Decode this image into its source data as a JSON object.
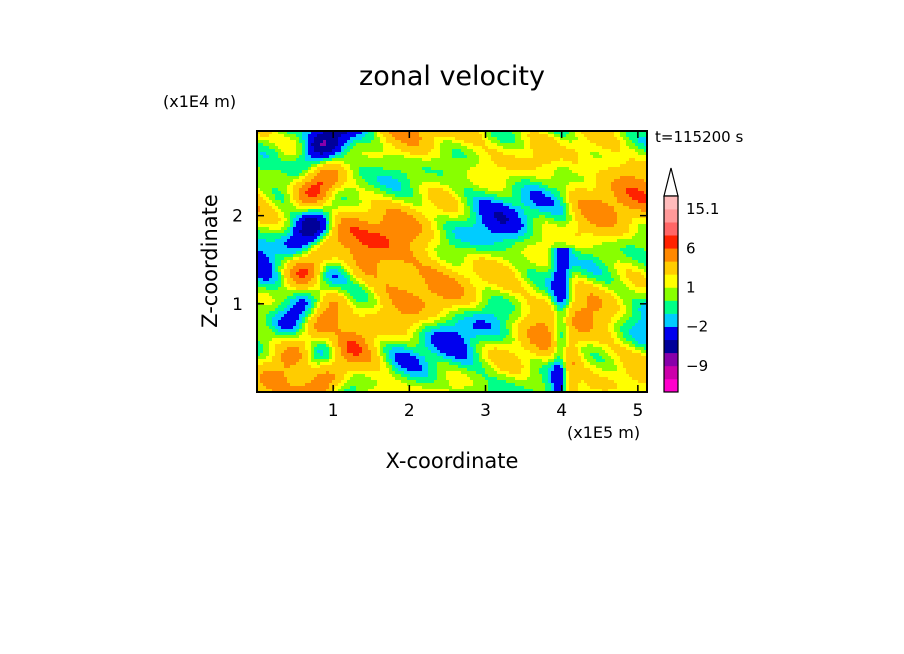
{
  "chart_data": {
    "type": "heatmap",
    "title": "zonal velocity",
    "xlabel": "X-coordinate",
    "ylabel": "Z-coordinate",
    "x_unit": "(x1E5 m)",
    "y_unit": "(x1E4 m)",
    "time_label": "t=115200 s",
    "xlim": [
      0,
      5.12
    ],
    "ylim": [
      0,
      2.96
    ],
    "x_ticks": [
      1,
      2,
      3,
      4,
      5
    ],
    "y_ticks": [
      1,
      2
    ],
    "colorbar": {
      "tick_labels": [
        "15.1",
        "6",
        "1",
        "−2",
        "−9"
      ],
      "tick_values": [
        15.1,
        6,
        1,
        -2,
        -9
      ],
      "levels": [
        -16,
        -12,
        -9,
        -6,
        -4,
        -2,
        -1,
        0,
        1,
        2,
        4,
        6,
        9,
        12,
        15.1
      ],
      "colors": [
        "#ff00cc",
        "#cc00aa",
        "#8800aa",
        "#000099",
        "#0000ee",
        "#00ccff",
        "#00ff88",
        "#88ff00",
        "#ffff00",
        "#ffcc00",
        "#ff8800",
        "#ff2200",
        "#ff6666",
        "#ff9999",
        "#ffbbbb"
      ],
      "extend_top": true
    }
  }
}
